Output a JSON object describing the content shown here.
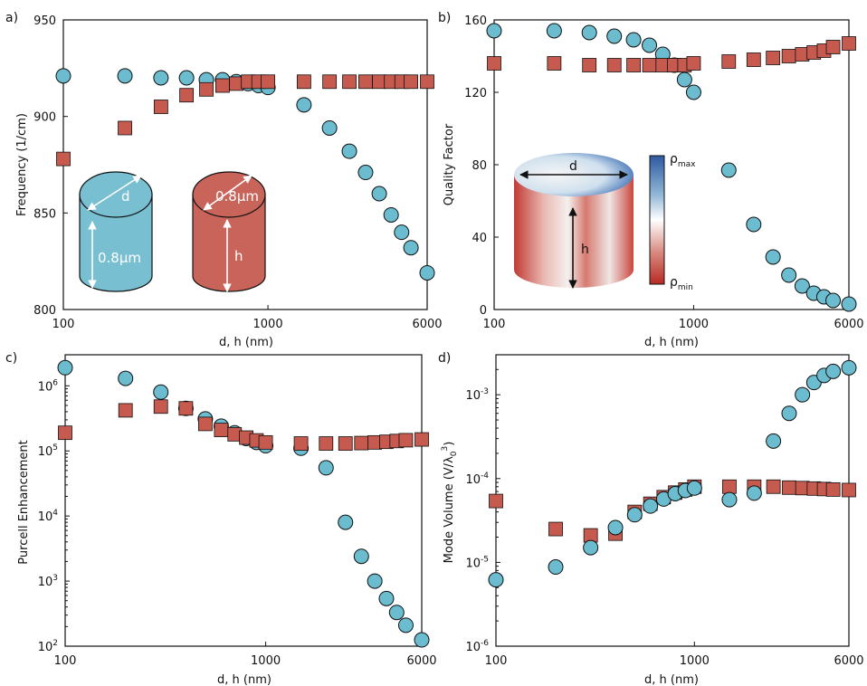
{
  "colors": {
    "circle": "#6bbccf",
    "square": "#c65a4f",
    "cyl_blue": "#78bfd2",
    "cyl_red": "#c8645a"
  },
  "chart_data": [
    {
      "panel": "a)",
      "type": "scatter",
      "xlabel": "d, h (nm)",
      "ylabel": "Frequency (1/cm)",
      "xscale": "log",
      "yscale": "linear",
      "xlim": [
        100,
        6000
      ],
      "ylim": [
        800,
        950
      ],
      "xticks": [
        {
          "v": 100,
          "t": "100"
        },
        {
          "v": 1000,
          "t": "1000"
        },
        {
          "v": 6000,
          "t": "6000"
        }
      ],
      "yticks": [
        {
          "v": 800,
          "t": "800"
        },
        {
          "v": 850,
          "t": "850"
        },
        {
          "v": 900,
          "t": "900"
        },
        {
          "v": 950,
          "t": "950"
        }
      ],
      "series": [
        {
          "marker": "circle",
          "x": [
            100,
            200,
            300,
            400,
            500,
            600,
            700,
            800,
            900,
            1000,
            1500,
            2000,
            2500,
            3000,
            3500,
            4000,
            4500,
            5000,
            6000
          ],
          "y": [
            921,
            921,
            920,
            920,
            919,
            919,
            918,
            917,
            916,
            915,
            906,
            894,
            882,
            871,
            860,
            849,
            840,
            832,
            819
          ]
        },
        {
          "marker": "square",
          "x": [
            100,
            200,
            300,
            400,
            500,
            600,
            700,
            800,
            900,
            1000,
            1500,
            2000,
            2500,
            3000,
            3500,
            4000,
            4500,
            5000,
            6000
          ],
          "y": [
            878,
            894,
            905,
            911,
            914,
            916,
            917,
            918,
            918,
            918,
            918,
            918,
            918,
            918,
            918,
            918,
            918,
            918,
            918
          ]
        }
      ],
      "inset": {
        "label_d": "d",
        "label_h": "h",
        "label_size1": "0.8µm",
        "label_size2": "0.8µm"
      }
    },
    {
      "panel": "b)",
      "type": "scatter",
      "xlabel": "d, h (nm)",
      "ylabel": "Quality Factor",
      "xscale": "log",
      "yscale": "linear",
      "xlim": [
        100,
        6000
      ],
      "ylim": [
        0,
        160
      ],
      "xticks": [
        {
          "v": 100,
          "t": "100"
        },
        {
          "v": 1000,
          "t": "1000"
        },
        {
          "v": 6000,
          "t": "6000"
        }
      ],
      "yticks": [
        {
          "v": 0,
          "t": "0"
        },
        {
          "v": 40,
          "t": "40"
        },
        {
          "v": 80,
          "t": "80"
        },
        {
          "v": 120,
          "t": "120"
        },
        {
          "v": 160,
          "t": "160"
        }
      ],
      "series": [
        {
          "marker": "circle",
          "x": [
            100,
            200,
            300,
            400,
            500,
            600,
            700,
            800,
            900,
            1000,
            1500,
            2000,
            2500,
            3000,
            3500,
            4000,
            4500,
            5000,
            6000
          ],
          "y": [
            154,
            154,
            153,
            151,
            149,
            146,
            141,
            135,
            127,
            120,
            77,
            47,
            29,
            19,
            13,
            9,
            7,
            5,
            3
          ]
        },
        {
          "marker": "square",
          "x": [
            100,
            200,
            300,
            400,
            500,
            600,
            700,
            800,
            900,
            1000,
            1500,
            2000,
            2500,
            3000,
            3500,
            4000,
            4500,
            5000,
            6000
          ],
          "y": [
            136,
            136,
            135,
            135,
            135,
            135,
            135,
            135,
            135,
            136,
            137,
            138,
            139,
            140,
            141,
            142,
            143,
            145,
            147
          ]
        }
      ],
      "inset": {
        "label_d": "d",
        "label_h": "h",
        "rho": "ρ",
        "max": "max",
        "min": "min"
      }
    },
    {
      "panel": "c)",
      "type": "scatter",
      "xlabel": "d, h (nm)",
      "ylabel": "Purcell Enhancement",
      "xscale": "log",
      "yscale": "log",
      "xlim": [
        100,
        6000
      ],
      "ylim": [
        100,
        3000000
      ],
      "xticks": [
        {
          "v": 100,
          "t": "100"
        },
        {
          "v": 1000,
          "t": "1000"
        },
        {
          "v": 6000,
          "t": "6000"
        }
      ],
      "yticks": [
        {
          "v": 100,
          "b": "10",
          "e": "2"
        },
        {
          "v": 1000,
          "b": "10",
          "e": "3"
        },
        {
          "v": 10000,
          "b": "10",
          "e": "4"
        },
        {
          "v": 100000,
          "b": "10",
          "e": "5"
        },
        {
          "v": 1000000,
          "b": "10",
          "e": "6"
        }
      ],
      "series": [
        {
          "marker": "circle",
          "x": [
            100,
            200,
            300,
            400,
            500,
            600,
            700,
            800,
            900,
            1000,
            1500,
            2000,
            2500,
            3000,
            3500,
            4000,
            4500,
            5000,
            6000
          ],
          "y": [
            1900000,
            1300000,
            800000,
            450000,
            310000,
            240000,
            190000,
            155000,
            135000,
            120000,
            110000,
            55000,
            8000,
            2400,
            1000,
            540,
            330,
            210,
            125
          ]
        },
        {
          "marker": "square",
          "x": [
            100,
            200,
            300,
            400,
            500,
            600,
            700,
            800,
            900,
            1000,
            1500,
            2000,
            2500,
            3000,
            3500,
            4000,
            4500,
            5000,
            6000
          ],
          "y": [
            190000,
            420000,
            480000,
            450000,
            260000,
            210000,
            180000,
            160000,
            145000,
            135000,
            130000,
            130000,
            130000,
            132000,
            135000,
            138000,
            142000,
            146000,
            150000
          ]
        }
      ]
    },
    {
      "panel": "d)",
      "type": "scatter",
      "xlabel": "d, h (nm)",
      "ylabel": "Mode Volume (V/λ",
      "ylabel_sub": "0",
      "ylabel_sup": "3",
      "ylabel_end": ")",
      "xscale": "log",
      "yscale": "log",
      "xlim": [
        100,
        6000
      ],
      "ylim": [
        1e-06,
        0.003
      ],
      "xticks": [
        {
          "v": 100,
          "t": "100"
        },
        {
          "v": 1000,
          "t": "1000"
        },
        {
          "v": 6000,
          "t": "6000"
        }
      ],
      "yticks": [
        {
          "v": 1e-06,
          "b": "10",
          "e": "-6"
        },
        {
          "v": 1e-05,
          "b": "10",
          "e": "-5"
        },
        {
          "v": 0.0001,
          "b": "10",
          "e": "-4"
        },
        {
          "v": 0.001,
          "b": "10",
          "e": "-3"
        }
      ],
      "series": [
        {
          "marker": "square",
          "x": [
            100,
            200,
            300,
            400,
            500,
            600,
            700,
            800,
            900,
            1000,
            1500,
            2000,
            2500,
            3000,
            3500,
            4000,
            4500,
            5000,
            6000
          ],
          "y": [
            5.4e-05,
            2.5e-05,
            2.1e-05,
            2.2e-05,
            4e-05,
            5e-05,
            6e-05,
            6.8e-05,
            7.4e-05,
            8e-05,
            8e-05,
            8e-05,
            8e-05,
            7.8e-05,
            7.7e-05,
            7.6e-05,
            7.5e-05,
            7.4e-05,
            7.3e-05
          ]
        },
        {
          "marker": "circle",
          "x": [
            100,
            200,
            300,
            400,
            500,
            600,
            700,
            800,
            900,
            1000,
            1500,
            2000,
            2500,
            3000,
            3500,
            4000,
            4500,
            5000,
            6000
          ],
          "y": [
            6.2e-06,
            8.8e-06,
            1.5e-05,
            2.6e-05,
            3.7e-05,
            4.7e-05,
            5.7e-05,
            6.6e-05,
            7.2e-05,
            7.7e-05,
            5.6e-05,
            6.7e-05,
            0.00028,
            0.0006,
            0.001,
            0.0014,
            0.0017,
            0.0019,
            0.0021
          ]
        }
      ]
    }
  ]
}
